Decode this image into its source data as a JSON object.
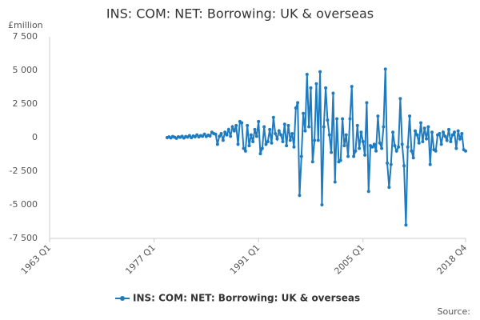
{
  "chart_data": {
    "type": "line",
    "title": "INS: COM: NET: Borrowing: UK & overseas",
    "y_unit": "£million",
    "source": "Source:",
    "categories": [
      "1963 Q1",
      null,
      null,
      null,
      null,
      null,
      null,
      null,
      null,
      null,
      null,
      null,
      null,
      null,
      null,
      null,
      null,
      null,
      null,
      null,
      null,
      null,
      null,
      null,
      null,
      null,
      null,
      null,
      null,
      null,
      null,
      null,
      null,
      null,
      null,
      null,
      null,
      null,
      null,
      null,
      null,
      null,
      null,
      null,
      null,
      null,
      null,
      null,
      null,
      null,
      null,
      null,
      null,
      null,
      null,
      null,
      "1977 Q1",
      null,
      null,
      null,
      null,
      null,
      null,
      null,
      null,
      null,
      null,
      null,
      null,
      null,
      null,
      null,
      null,
      null,
      null,
      null,
      null,
      null,
      null,
      null,
      null,
      null,
      null,
      null,
      null,
      null,
      null,
      null,
      null,
      null,
      null,
      null,
      null,
      null,
      null,
      null,
      null,
      null,
      null,
      null,
      null,
      null,
      null,
      null,
      null,
      null,
      null,
      null,
      null,
      null,
      null,
      null,
      "1991 Q1",
      null,
      null,
      null,
      null,
      null,
      null,
      null,
      null,
      null,
      null,
      null,
      null,
      null,
      null,
      null,
      null,
      null,
      null,
      null,
      null,
      null,
      null,
      null,
      null,
      null,
      null,
      null,
      null,
      null,
      null,
      null,
      null,
      null,
      null,
      null,
      null,
      null,
      null,
      null,
      null,
      null,
      null,
      null,
      null,
      null,
      null,
      null,
      null,
      null,
      null,
      null,
      null,
      null,
      null,
      null,
      "2005 Q1",
      null,
      null,
      null,
      null,
      null,
      null,
      null,
      null,
      null,
      null,
      null,
      null,
      null,
      null,
      null,
      null,
      null,
      null,
      null,
      null,
      null,
      null,
      null,
      null,
      null,
      null,
      null,
      null,
      null,
      null,
      null,
      null,
      null,
      null,
      null,
      null,
      null,
      null,
      null,
      null,
      null,
      null,
      null,
      null,
      null,
      null,
      null,
      null,
      null,
      null,
      null,
      null,
      null,
      null,
      "2018 Q4"
    ],
    "series": [
      {
        "name": "INS: COM: NET: Borrowing: UK & overseas",
        "color": "#1f7bbf",
        "values": [
          null,
          null,
          null,
          null,
          null,
          null,
          null,
          null,
          null,
          null,
          null,
          null,
          null,
          null,
          null,
          null,
          null,
          null,
          null,
          null,
          null,
          null,
          null,
          null,
          null,
          null,
          null,
          null,
          null,
          null,
          null,
          null,
          null,
          null,
          null,
          null,
          null,
          null,
          null,
          null,
          null,
          null,
          null,
          null,
          null,
          null,
          null,
          null,
          null,
          null,
          null,
          null,
          null,
          null,
          null,
          null,
          null,
          null,
          null,
          null,
          null,
          null,
          null,
          0,
          50,
          -20,
          80,
          30,
          -50,
          60,
          20,
          100,
          -30,
          80,
          40,
          150,
          -10,
          120,
          60,
          200,
          50,
          150,
          100,
          250,
          80,
          180,
          120,
          400,
          300,
          250,
          -500,
          100,
          300,
          -200,
          400,
          200,
          600,
          100,
          800,
          500,
          900,
          -500,
          1200,
          1100,
          -800,
          -1000,
          900,
          -600,
          200,
          -300,
          600,
          100,
          1200,
          -1200,
          -800,
          800,
          -500,
          -300,
          600,
          -400,
          1500,
          300,
          -100,
          500,
          200,
          -300,
          1000,
          -600,
          900,
          -200,
          300,
          -700,
          2200,
          2600,
          -4300,
          -1400,
          1800,
          500,
          4700,
          800,
          3700,
          -1800,
          -200,
          4000,
          -200,
          4900,
          -5000,
          800,
          3700,
          1300,
          200,
          -1100,
          3300,
          -3300,
          1400,
          -1800,
          -1700,
          1400,
          -600,
          200,
          -1400,
          1400,
          3800,
          -1400,
          -1000,
          900,
          -800,
          400,
          -300,
          -1300,
          2600,
          -4000,
          -600,
          -700,
          -500,
          -1000,
          1600,
          -400,
          -800,
          800,
          5100,
          -1900,
          -3700,
          -2000,
          400,
          -600,
          -1000,
          -700,
          2900,
          -500,
          -2100,
          -6500,
          -700,
          1600,
          -1000,
          -1500,
          500,
          200,
          -400,
          1100,
          -300,
          700,
          -100,
          800,
          -2000,
          400,
          -900,
          -1000,
          200,
          300,
          -500,
          400,
          100,
          -200,
          600,
          -300,
          200,
          400,
          -800,
          500,
          -100,
          300,
          -900,
          -1000
        ]
      }
    ],
    "ylim": [
      -7500,
      7500
    ],
    "yticks": [
      {
        "value": -7500,
        "label": "-7 500"
      },
      {
        "value": -5000,
        "label": "-5 000"
      },
      {
        "value": -2500,
        "label": "-2 500"
      },
      0,
      {
        "value": 2500,
        "label": "2 500"
      },
      {
        "value": 5000,
        "label": "5 000"
      },
      {
        "value": 7500,
        "label": "7 500"
      }
    ],
    "grid": false,
    "legend": "bottom"
  }
}
